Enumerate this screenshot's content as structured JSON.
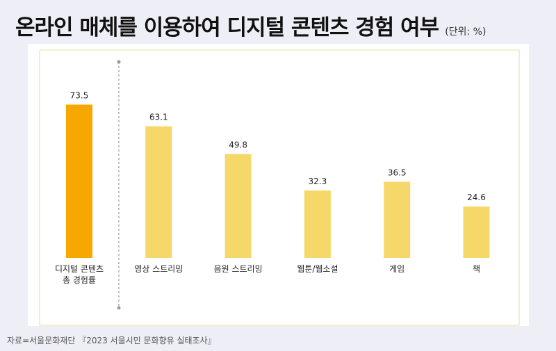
{
  "header": {
    "title": "온라인 매체를 이용하여 디지털 콘텐츠 경험 여부",
    "unit": "(단위: %)"
  },
  "source": "자료=서울문화재단 『2023 서울시민 문화향유 실태조사』",
  "colors": {
    "highlight_bar": "#f7a800",
    "bar": "#f6d86a",
    "frame": "#e6dca6",
    "divider": "#9a9a9a"
  },
  "chart_data": {
    "type": "bar",
    "categories": [
      [
        "디지털 콘텐츠",
        "총 경험률"
      ],
      [
        "영상 스트리밍"
      ],
      [
        "음원 스트리밍"
      ],
      [
        "웹툰/웹소설"
      ],
      [
        "게임"
      ],
      [
        "책"
      ]
    ],
    "values": [
      73.5,
      63.1,
      49.8,
      32.3,
      36.5,
      24.6
    ],
    "highlight_index": 0,
    "ylim": [
      0,
      100
    ],
    "grid": false,
    "title": "",
    "xlabel": "",
    "ylabel": ""
  }
}
